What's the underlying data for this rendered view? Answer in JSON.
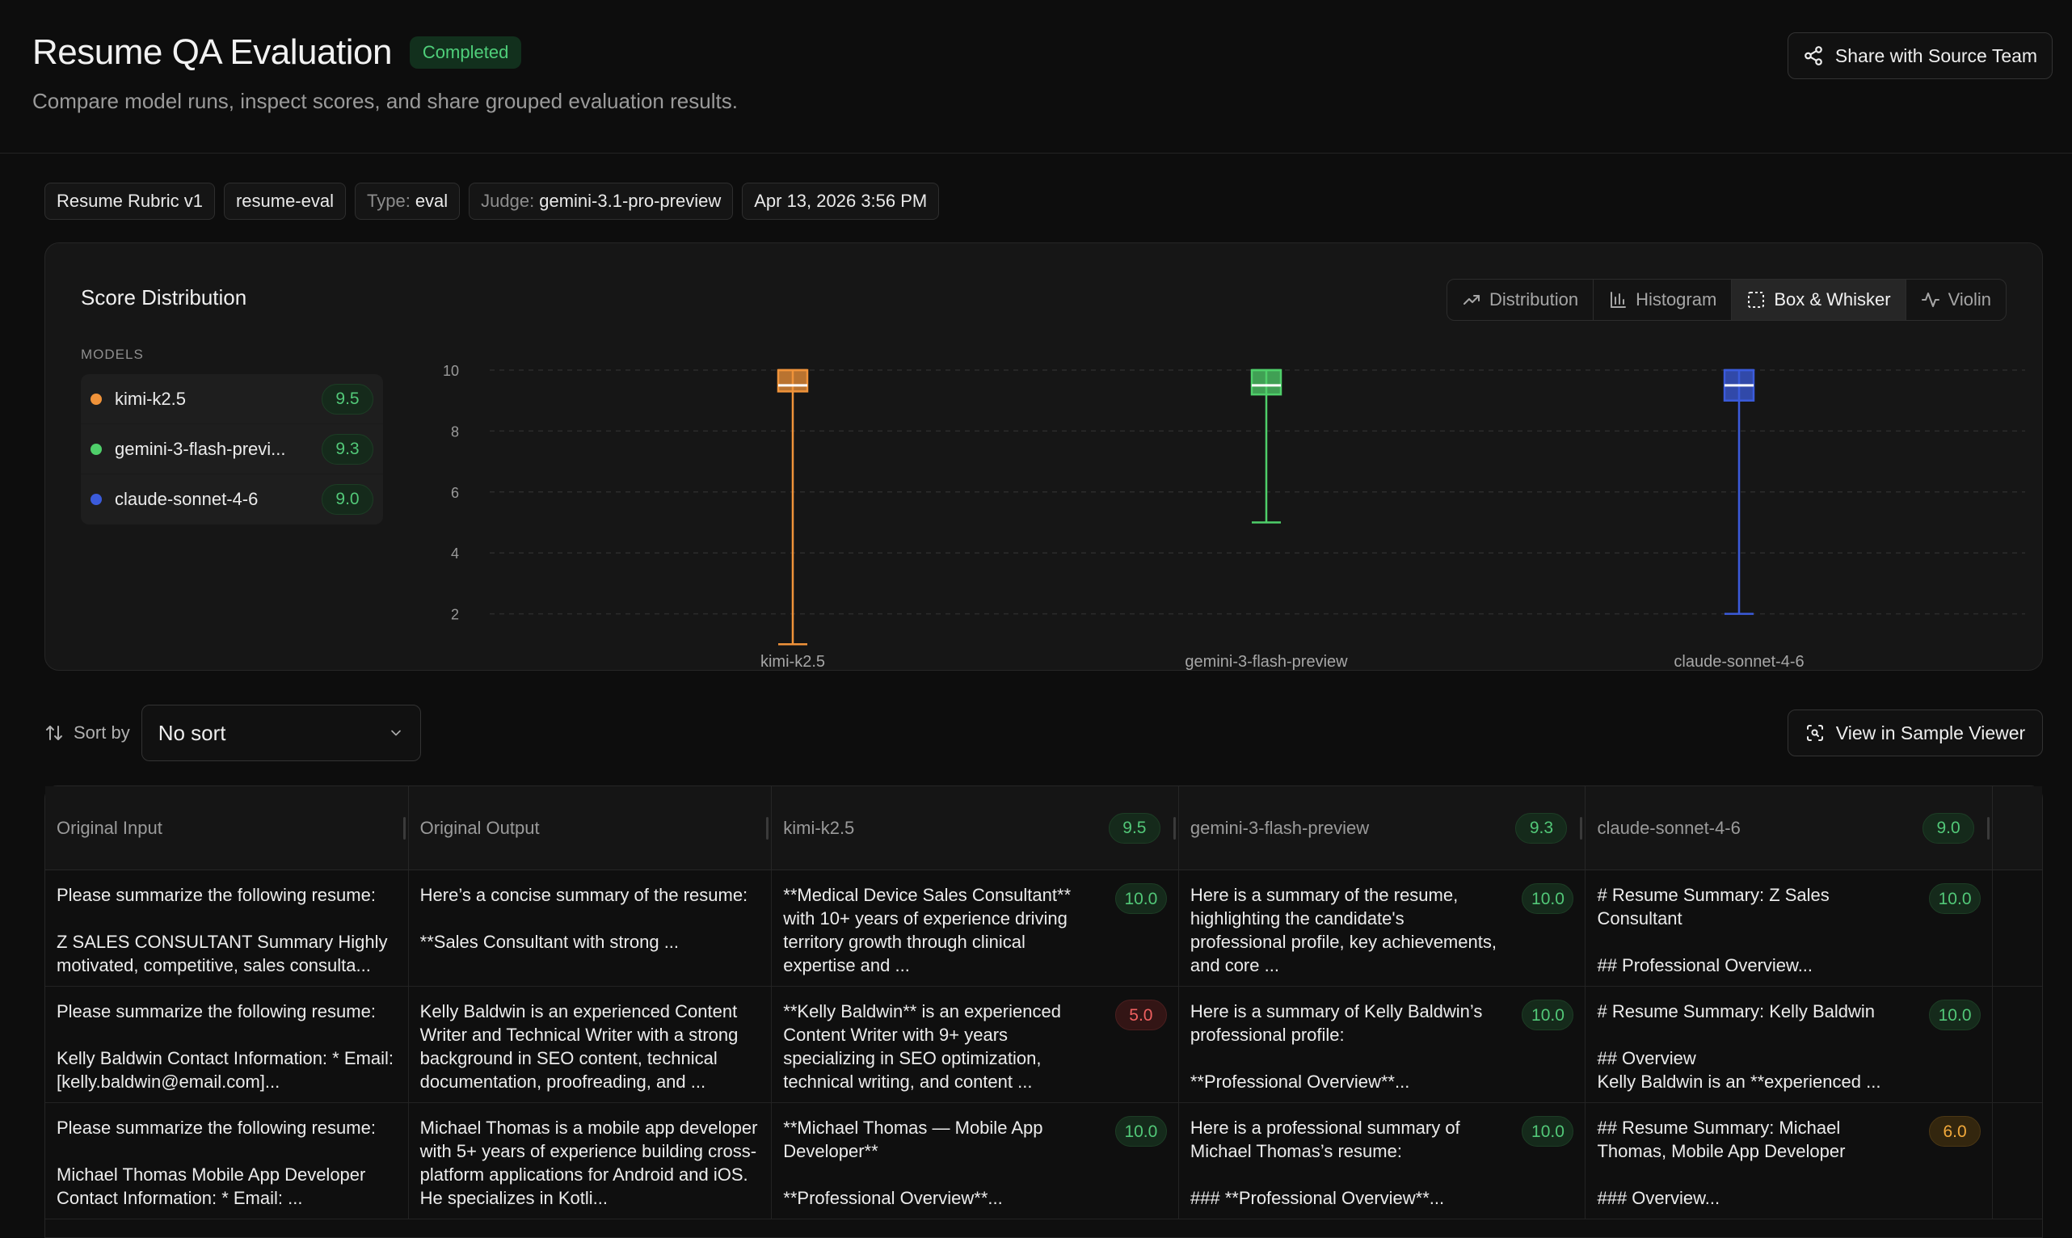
{
  "header": {
    "title": "Resume QA Evaluation",
    "status": "Completed",
    "subtitle": "Compare model runs, inspect scores, and share grouped evaluation results.",
    "share_label": "Share with Source Team"
  },
  "tags": {
    "rubric": "Resume Rubric v1",
    "dataset": "resume-eval",
    "type_key": "Type:",
    "type_value": "eval",
    "judge_key": "Judge:",
    "judge_value": "gemini-3.1-pro-preview",
    "date": "Apr 13, 2026 3:56 PM"
  },
  "chart_card": {
    "title": "Score Distribution",
    "tabs": [
      "Distribution",
      "Histogram",
      "Box & Whisker",
      "Violin"
    ],
    "active_tab": "Box & Whisker",
    "models_label": "MODELS",
    "models": [
      {
        "name": "kimi-k2.5",
        "score": "9.5",
        "color": "#f0933a"
      },
      {
        "name": "gemini-3-flash-previ...",
        "score": "9.3",
        "color": "#4fcf6a"
      },
      {
        "name": "claude-sonnet-4-6",
        "score": "9.0",
        "color": "#3b5bdb"
      }
    ]
  },
  "chart_data": {
    "type": "box",
    "title": "",
    "xlabel": "",
    "ylabel": "",
    "ylim": [
      1,
      10
    ],
    "yticks": [
      2,
      4,
      6,
      8,
      10
    ],
    "grid": true,
    "categories": [
      "kimi-k2.5",
      "gemini-3-flash-preview",
      "claude-sonnet-4-6"
    ],
    "series": [
      {
        "name": "kimi-k2.5",
        "color": "#f0933a",
        "min": 1,
        "q1": 9.3,
        "median": 9.5,
        "q3": 10,
        "max": 10
      },
      {
        "name": "gemini-3-flash-preview",
        "color": "#4fcf6a",
        "min": 5,
        "q1": 9.2,
        "median": 9.5,
        "q3": 10,
        "max": 10
      },
      {
        "name": "claude-sonnet-4-6",
        "color": "#3b5bdb",
        "min": 2,
        "q1": 9.0,
        "median": 9.5,
        "q3": 10,
        "max": 10
      }
    ]
  },
  "controls": {
    "sort_label": "Sort by",
    "sort_value": "No sort",
    "sample_viewer_label": "View in Sample Viewer"
  },
  "table": {
    "columns": [
      {
        "label": "Original Input",
        "score": ""
      },
      {
        "label": "Original Output",
        "score": ""
      },
      {
        "label": "kimi-k2.5",
        "score": "9.5"
      },
      {
        "label": "gemini-3-flash-preview",
        "score": "9.3"
      },
      {
        "label": "claude-sonnet-4-6",
        "score": "9.0"
      }
    ],
    "rows": [
      {
        "input": "Please summarize the following resume:\n\nZ SALES CONSULTANT Summary Highly motivated, competitive, sales consulta...",
        "output": "Here’s a concise summary of the resume:\n\n**Sales Consultant with strong ...",
        "cells": [
          {
            "text": "**Medical Device Sales Consultant** with 10+ years of experience driving territory growth through clinical expertise and ...",
            "score": "10.0",
            "tone": "green"
          },
          {
            "text": "Here is a summary of the resume, highlighting the candidate's professional profile, key achievements, and core ...",
            "score": "10.0",
            "tone": "green"
          },
          {
            "text": "# Resume Summary: Z Sales Consultant\n\n## Professional Overview...",
            "score": "10.0",
            "tone": "green"
          }
        ]
      },
      {
        "input": "Please summarize the following resume:\n\nKelly Baldwin Contact Information: * Email: [kelly.baldwin@email.com]...",
        "output": "Kelly Baldwin is an experienced Content Writer and Technical Writer with a strong background in SEO content, technical documentation, proofreading, and ...",
        "cells": [
          {
            "text": "**Kelly Baldwin** is an experienced Content Writer with 9+ years specializing in SEO optimization, technical writing, and content ...",
            "score": "5.0",
            "tone": "red"
          },
          {
            "text": "Here is a summary of Kelly Baldwin’s professional profile:\n\n**Professional Overview**...",
            "score": "10.0",
            "tone": "green"
          },
          {
            "text": "# Resume Summary: Kelly Baldwin\n\n## Overview\nKelly Baldwin is an **experienced ...",
            "score": "10.0",
            "tone": "green"
          }
        ]
      },
      {
        "input": "Please summarize the following resume:\n\nMichael Thomas Mobile App Developer Contact Information: * Email: ...",
        "output": "Michael Thomas is a mobile app developer with 5+ years of experience building cross-platform applications for Android and iOS. He specializes in Kotli...",
        "cells": [
          {
            "text": "**Michael Thomas — Mobile App Developer**\n\n**Professional Overview**...",
            "score": "10.0",
            "tone": "green"
          },
          {
            "text": "Here is a professional summary of Michael Thomas’s resume:\n\n### **Professional Overview**...",
            "score": "10.0",
            "tone": "green"
          },
          {
            "text": "## Resume Summary: Michael Thomas, Mobile App Developer\n\n### Overview...",
            "score": "6.0",
            "tone": "amber"
          }
        ]
      }
    ]
  }
}
